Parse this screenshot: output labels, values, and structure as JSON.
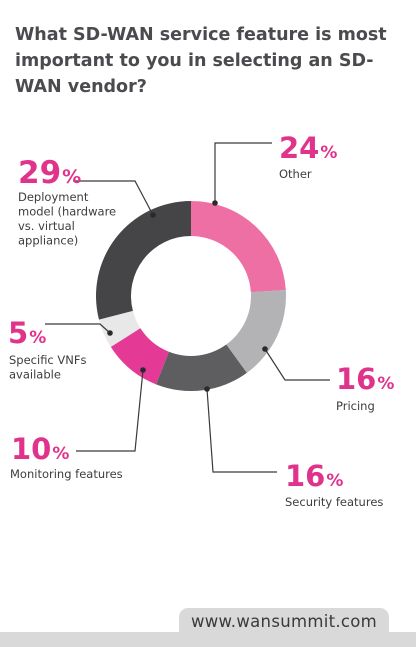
{
  "title": "What SD-WAN service feature is most important to you in selecting an SD-WAN vendor?",
  "footer": {
    "url": "www.wansummit.com"
  },
  "chart_data": {
    "type": "donut",
    "title": "What SD-WAN service feature is most important to you in selecting an SD-WAN vendor?",
    "unit": "%",
    "slices": [
      {
        "label": "Other",
        "value": 24,
        "display": "24%",
        "label_lines": [
          "Other"
        ],
        "color": "#ee6fa3"
      },
      {
        "label": "Pricing",
        "value": 16,
        "display": "16%",
        "label_lines": [
          "Pricing"
        ],
        "color": "#b3b3b5"
      },
      {
        "label": "Security features",
        "value": 16,
        "display": "16%",
        "label_lines": [
          "Security features"
        ],
        "color": "#5e5e61"
      },
      {
        "label": "Monitoring features",
        "value": 10,
        "display": "10%",
        "label_lines": [
          "Monitoring features"
        ],
        "color": "#e43a95"
      },
      {
        "label": "Specific VNFs available",
        "value": 5,
        "display": "5%",
        "label_lines": [
          "Specific VNFs",
          "available"
        ],
        "color": "#e8e8e9"
      },
      {
        "label": "Deployment model (hardware vs. virtual appliance)",
        "value": 29,
        "display": "29%",
        "label_lines": [
          "Deployment",
          "model (hardware",
          "vs. virtual",
          "appliance)"
        ],
        "color": "#454548"
      }
    ]
  }
}
